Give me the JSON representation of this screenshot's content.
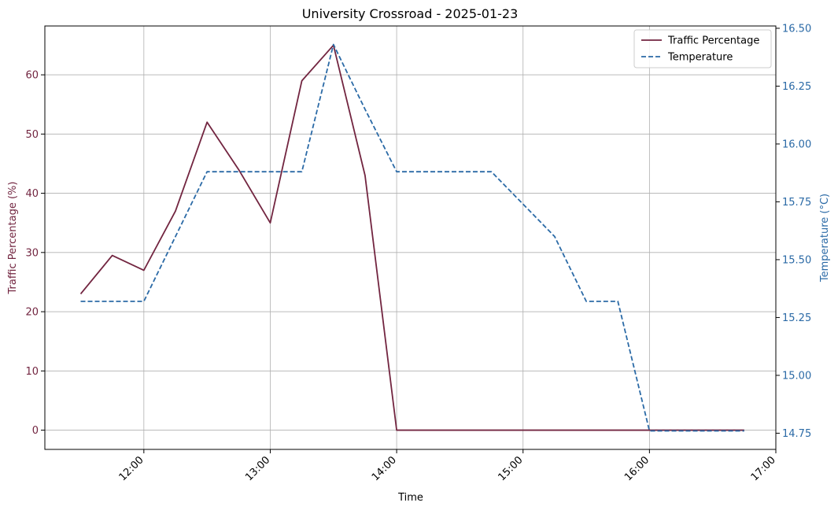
{
  "chart_data": {
    "type": "line",
    "title": "University Crossroad - 2025-01-23",
    "xlabel": "Time",
    "ylabel_left": "Traffic Percentage (%)",
    "ylabel_right": "Temperature (°C)",
    "x": [
      "11:30",
      "11:45",
      "12:00",
      "12:15",
      "12:30",
      "12:45",
      "13:00",
      "13:15",
      "13:30",
      "13:45",
      "14:00",
      "14:15",
      "14:30",
      "14:45",
      "15:00",
      "15:15",
      "15:30",
      "15:45",
      "16:00",
      "16:15",
      "16:30",
      "16:45"
    ],
    "x_ticks": [
      "12:00",
      "13:00",
      "14:00",
      "15:00",
      "16:00",
      "17:00"
    ],
    "xlim": [
      "11:13",
      "17:00"
    ],
    "ylim_left": [
      -3.25,
      68.25
    ],
    "ylim_right": [
      14.68,
      16.51
    ],
    "yticks_left": [
      0,
      10,
      20,
      30,
      40,
      50,
      60
    ],
    "yticks_right": [
      14.75,
      15.0,
      15.25,
      15.5,
      15.75,
      16.0,
      16.25,
      16.5
    ],
    "grid": true,
    "legend_position": "top-right",
    "series": [
      {
        "name": "Traffic Percentage",
        "axis": "left",
        "color": "#722540",
        "dash": "solid",
        "values": [
          23,
          29.5,
          27,
          37,
          52,
          44,
          35,
          59,
          65,
          43,
          0,
          0,
          0,
          0,
          0,
          0,
          0,
          0,
          0,
          0,
          0,
          0
        ]
      },
      {
        "name": "Temperature",
        "axis": "right",
        "color": "#2b6aa6",
        "dash": "dashed",
        "values": [
          15.32,
          15.32,
          15.32,
          15.6,
          15.88,
          15.88,
          15.88,
          15.88,
          16.43,
          16.15,
          15.88,
          15.88,
          15.88,
          15.88,
          15.74,
          15.6,
          15.32,
          15.32,
          14.76,
          14.76,
          14.76,
          14.76
        ]
      }
    ]
  }
}
